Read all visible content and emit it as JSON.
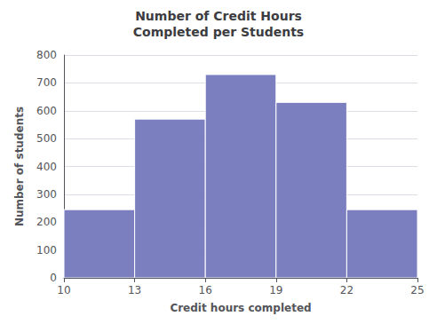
{
  "chart_data": {
    "type": "histogram",
    "title": "Number of Credit Hours\nCompleted per Students",
    "xlabel": "Credit hours completed",
    "ylabel": "Number of students",
    "bins": [
      10,
      13,
      16,
      19,
      22,
      25
    ],
    "values": [
      245,
      570,
      730,
      630,
      245
    ],
    "color": "#7b7fbf",
    "xlim": [
      10,
      25
    ],
    "xticks": [
      10,
      13,
      16,
      19,
      22,
      25
    ],
    "ylim": [
      0,
      800
    ],
    "yticks": [
      0,
      100,
      200,
      300,
      400,
      500,
      600,
      700,
      800
    ],
    "grid": true
  }
}
